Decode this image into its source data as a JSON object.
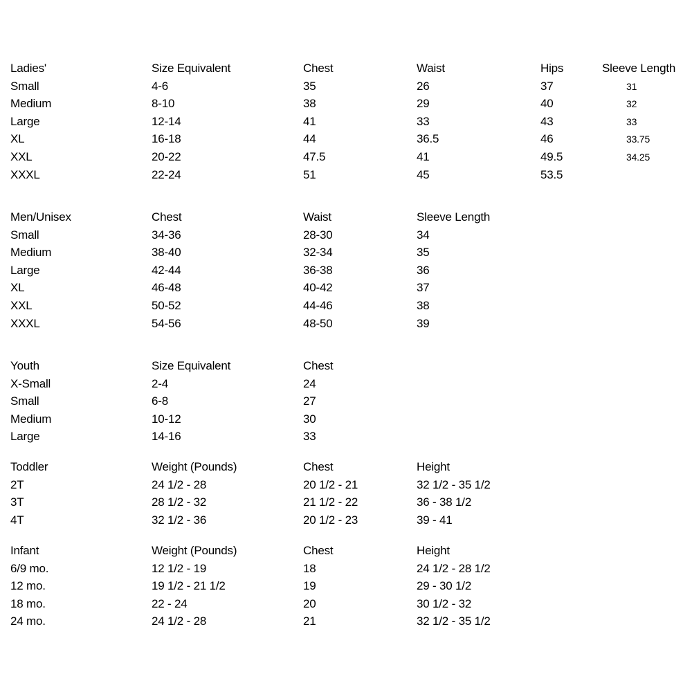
{
  "tables": [
    {
      "name": "ladies",
      "headers": [
        "Ladies'",
        "Size Equivalent",
        "Chest",
        "Waist",
        "Hips",
        "Sleeve Length"
      ],
      "rows": [
        [
          "Small",
          "4-6",
          "35",
          "26",
          "37",
          "31"
        ],
        [
          "Medium",
          "8-10",
          "38",
          "29",
          "40",
          "32"
        ],
        [
          "Large",
          "12-14",
          "41",
          "33",
          "43",
          "33"
        ],
        [
          "XL",
          "16-18",
          "44",
          "36.5",
          "46",
          "33.75"
        ],
        [
          "XXL",
          "20-22",
          "47.5",
          "41",
          "49.5",
          "34.25"
        ],
        [
          "XXXL",
          "22-24",
          "51",
          "45",
          "53.5",
          ""
        ]
      ]
    },
    {
      "name": "men-unisex",
      "headers": [
        "Men/Unisex",
        "Chest",
        "Waist",
        "Sleeve Length"
      ],
      "rows": [
        [
          "Small",
          "34-36",
          "28-30",
          "34"
        ],
        [
          "Medium",
          "38-40",
          "32-34",
          "35"
        ],
        [
          "Large",
          "42-44",
          "36-38",
          "36"
        ],
        [
          "XL",
          "46-48",
          "40-42",
          "37"
        ],
        [
          "XXL",
          "50-52",
          "44-46",
          "38"
        ],
        [
          "XXXL",
          "54-56",
          "48-50",
          "39"
        ]
      ]
    },
    {
      "name": "youth",
      "headers": [
        "Youth",
        "Size Equivalent",
        "Chest"
      ],
      "rows": [
        [
          "X-Small",
          "2-4",
          "24"
        ],
        [
          "Small",
          "6-8",
          "27"
        ],
        [
          "Medium",
          "10-12",
          "30"
        ],
        [
          "Large",
          "14-16",
          "33"
        ]
      ]
    },
    {
      "name": "toddler",
      "headers": [
        "Toddler",
        "Weight (Pounds)",
        "Chest",
        "Height"
      ],
      "rows": [
        [
          "2T",
          "24 1/2 - 28",
          "20 1/2 - 21",
          "32 1/2 - 35 1/2"
        ],
        [
          "3T",
          "28 1/2 - 32",
          "21 1/2 - 22",
          "36 - 38 1/2"
        ],
        [
          "4T",
          "32 1/2 - 36",
          "20 1/2 - 23",
          "39 - 41"
        ]
      ]
    },
    {
      "name": "infant",
      "headers": [
        "Infant",
        "Weight (Pounds)",
        "Chest",
        "Height"
      ],
      "rows": [
        [
          "6/9 mo.",
          "12 1/2 - 19",
          "18",
          "24 1/2 - 28 1/2"
        ],
        [
          "12 mo.",
          "19 1/2 - 21 1/2",
          "19",
          "29 - 30 1/2"
        ],
        [
          "18 mo.",
          "22 - 24",
          "20",
          "30 1/2 - 32"
        ],
        [
          "24 mo.",
          "24 1/2 - 28",
          "21",
          "32 1/2 - 35 1/2"
        ]
      ]
    }
  ]
}
